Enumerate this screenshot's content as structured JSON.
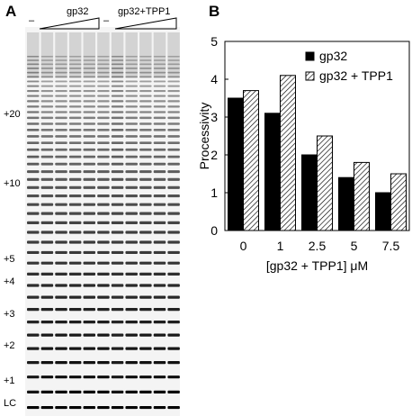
{
  "figure": {
    "panel_a_letter": "A",
    "panel_b_letter": "B"
  },
  "gel": {
    "minus_label_1": "–",
    "minus_label_2": "–",
    "group_1_label": "gp32",
    "group_2_label": "gp32+TPP1",
    "markers": [
      "+20",
      "+10",
      "+5",
      "+4",
      "+3",
      "+2",
      "+1",
      "LC"
    ],
    "colors": {
      "band": "#000000",
      "background": "#f4f4f4"
    }
  },
  "chart_data": {
    "type": "bar",
    "categories": [
      "0",
      "1",
      "2.5",
      "5",
      "7.5"
    ],
    "series": [
      {
        "name": "gp32",
        "values": [
          3.5,
          3.1,
          2.0,
          1.4,
          1.0
        ],
        "fill": "solid-black"
      },
      {
        "name": "gp32 + TPP1",
        "values": [
          3.7,
          4.1,
          2.5,
          1.8,
          1.5
        ],
        "fill": "diagonal-hatch"
      }
    ],
    "xlabel": "[gp32 + TPP1] μM",
    "ylabel": "Processivity",
    "ylim": [
      0,
      5
    ],
    "yticks": [
      "0",
      "1",
      "2",
      "3",
      "4",
      "5"
    ],
    "legend_position": "top-right",
    "grid": false
  }
}
